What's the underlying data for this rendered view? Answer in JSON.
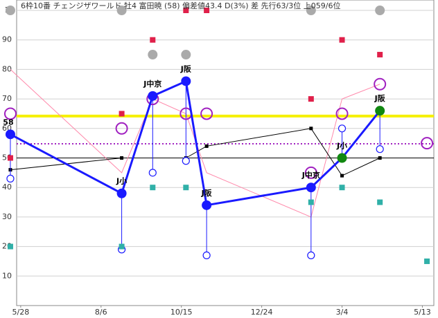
{
  "chart_data": {
    "type": "line",
    "title": "6枠10番 チェンジザワールド 牡4 富田暁 (58) 偏差値43.4 D(3%) 差 先行63/3位 上059/6位",
    "x": [
      -9,
      88,
      115,
      144,
      162,
      253,
      280,
      313,
      354
    ],
    "xlim": [
      -12,
      360
    ],
    "xticks": [
      {
        "value": 0,
        "label": "5/28"
      },
      {
        "value": 70,
        "label": "8/6"
      },
      {
        "value": 140,
        "label": "10/15"
      },
      {
        "value": 210,
        "label": "12/24"
      },
      {
        "value": 280,
        "label": "3/4"
      },
      {
        "value": 350,
        "label": "5/13"
      }
    ],
    "ylim": [
      0,
      100
    ],
    "yticks": [
      10,
      20,
      30,
      40,
      50,
      60,
      70,
      80,
      90,
      {
        "value": 100,
        "label": "1"
      }
    ],
    "grid": true,
    "hlines": [
      {
        "value": 64.2,
        "color": "#f5f000",
        "style": "solid",
        "width": 4
      },
      {
        "value": 54.8,
        "color": "#a020c0",
        "style": "dotted",
        "width": 2
      },
      {
        "value": 50,
        "color": "#000000",
        "style": "solid",
        "width": 1
      }
    ],
    "series": [
      {
        "marker": "line",
        "color": "#ff88aa",
        "values": [
          80,
          45,
          70,
          65,
          45,
          30,
          70,
          75,
          null
        ]
      },
      {
        "marker": "line-square",
        "color": "#000000",
        "values": [
          46,
          50,
          null,
          50,
          54,
          60,
          44,
          50,
          null
        ]
      },
      {
        "marker": "ring-small",
        "color": "#1a1aff",
        "stems": true,
        "values": [
          43,
          19,
          45,
          49,
          17,
          17,
          60,
          53,
          null
        ]
      },
      {
        "marker": "square",
        "color": "#e0204a",
        "values": [
          50,
          65,
          90,
          100,
          100,
          70,
          90,
          85,
          null
        ]
      },
      {
        "marker": "square",
        "color": "#30b0a8",
        "values": [
          20,
          20,
          40,
          40,
          null,
          35,
          40,
          35,
          15
        ]
      },
      {
        "marker": "dot",
        "color": "#aaaaaa",
        "values": [
          100,
          100,
          85,
          85,
          null,
          100,
          null,
          100,
          null
        ]
      },
      {
        "marker": "ring-large",
        "color": "#a020c0",
        "values": [
          65,
          60,
          70,
          65,
          65,
          45,
          65,
          75,
          55
        ]
      },
      {
        "marker": "big-dot-line",
        "color": "#1a1aff",
        "values": [
          58,
          38,
          71,
          76,
          34,
          40,
          50,
          66,
          null
        ],
        "point_colors": [
          "#1a1aff",
          "#1a1aff",
          "#1a1aff",
          "#1a1aff",
          "#1a1aff",
          "#1a1aff",
          "#118811",
          "#118811",
          null
        ],
        "labels": [
          "58",
          "J小",
          "J中京",
          "J阪",
          "J阪",
          "J中京",
          "J小",
          "J阪",
          null
        ]
      }
    ]
  }
}
